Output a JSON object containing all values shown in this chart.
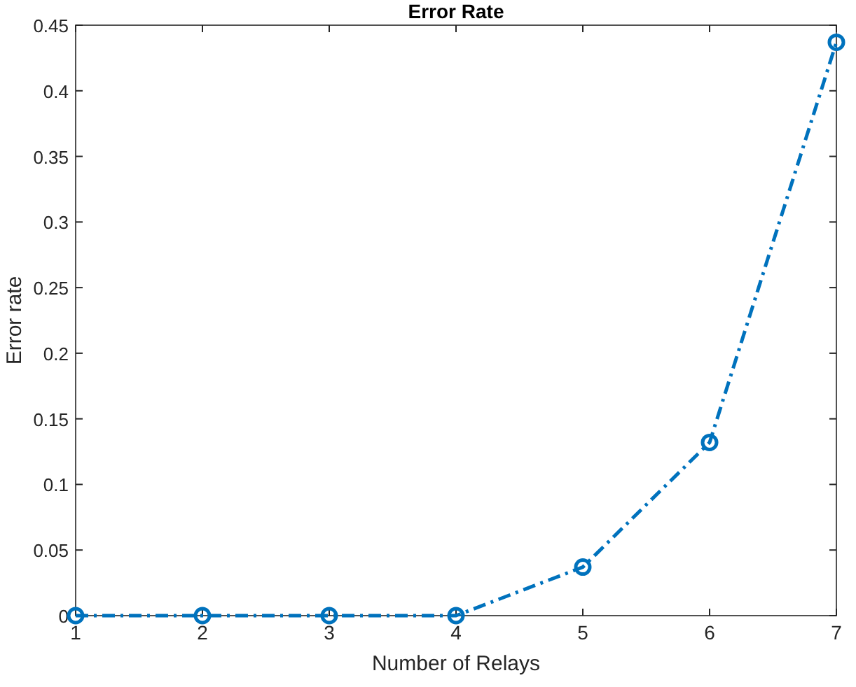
{
  "chart_data": {
    "type": "line",
    "title": "Error Rate",
    "xlabel": "Number of Relays",
    "ylabel": "Error rate",
    "x": [
      1,
      2,
      3,
      4,
      5,
      6,
      7
    ],
    "series": [
      {
        "color": "#0072bd",
        "values": [
          0,
          0,
          0,
          0,
          0.037,
          0.132,
          0.437
        ]
      }
    ],
    "xlim": [
      1,
      7
    ],
    "xticks": [
      1,
      2,
      3,
      4,
      5,
      6,
      7
    ],
    "ylim": [
      0,
      0.45
    ],
    "yticks": [
      0,
      0.05,
      0.1,
      0.15,
      0.2,
      0.25,
      0.3,
      0.35,
      0.4,
      0.45
    ],
    "marker": "circle",
    "line_style": "dashed",
    "grid": false
  }
}
